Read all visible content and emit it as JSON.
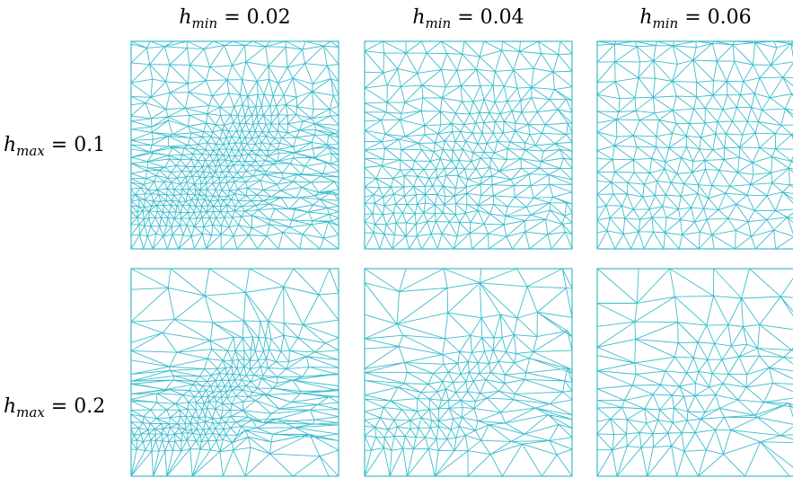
{
  "columns": [
    {
      "symbol": "h",
      "subscript": "min",
      "relation": " = ",
      "value": "0.02"
    },
    {
      "symbol": "h",
      "subscript": "min",
      "relation": " = ",
      "value": "0.04"
    },
    {
      "symbol": "h",
      "subscript": "min",
      "relation": " = ",
      "value": "0.06"
    }
  ],
  "rows": [
    {
      "symbol": "h",
      "subscript": "max",
      "relation": " = ",
      "value": "0.1"
    },
    {
      "symbol": "h",
      "subscript": "max",
      "relation": " = ",
      "value": "0.2"
    }
  ],
  "mesh_color": "#3bbccc",
  "panels": [
    {
      "h_max": 0.1,
      "h_min": 0.02
    },
    {
      "h_max": 0.1,
      "h_min": 0.04
    },
    {
      "h_max": 0.1,
      "h_min": 0.06
    },
    {
      "h_max": 0.2,
      "h_min": 0.02
    },
    {
      "h_max": 0.2,
      "h_min": 0.04
    },
    {
      "h_max": 0.2,
      "h_min": 0.06
    }
  ]
}
